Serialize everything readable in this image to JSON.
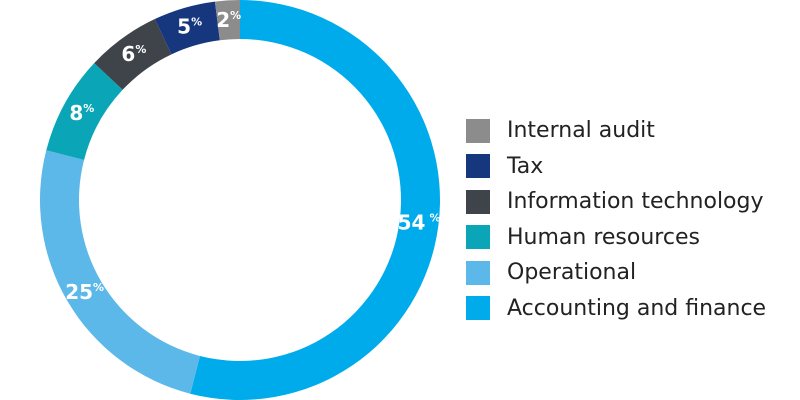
{
  "chart_data": {
    "type": "pie",
    "variant": "donut",
    "title": "",
    "categories": [
      "Internal audit",
      "Tax",
      "Information technology",
      "Human resources",
      "Operational",
      "Accounting and finance"
    ],
    "values": [
      2,
      5,
      6,
      8,
      25,
      54
    ],
    "colors": [
      "#8c8c8c",
      "#16377e",
      "#3f444b",
      "#0aa6b8",
      "#5cb8e8",
      "#00abec"
    ],
    "data_labels": [
      "2",
      "5",
      "6",
      "8",
      "25",
      "54"
    ],
    "percent_symbol": "%",
    "legend_placement": "right"
  }
}
